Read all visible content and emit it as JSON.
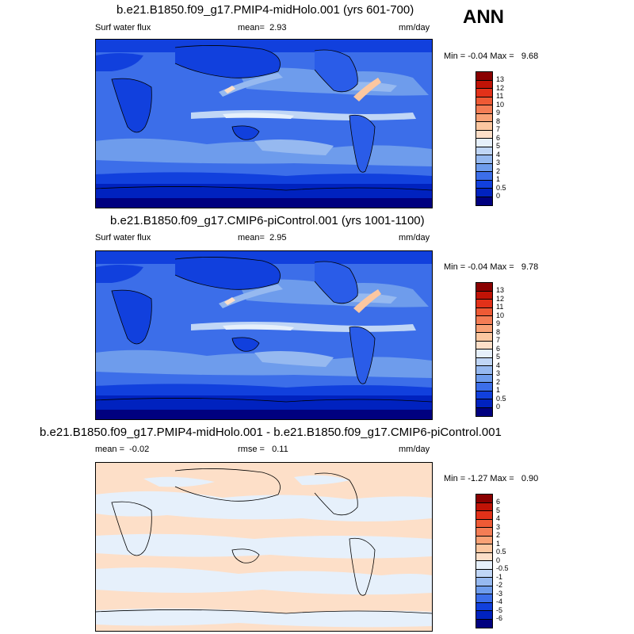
{
  "season": "ANN",
  "palette_full": [
    "#00007f",
    "#0022bf",
    "#1140dd",
    "#2a5ce8",
    "#3c6ee9",
    "#5486ea",
    "#6e9cec",
    "#96b9f0",
    "#c0d6f6",
    "#e6f0fb",
    "#fddfc8",
    "#fcc7a0",
    "#f9a276",
    "#f47d55",
    "#ee5a35",
    "#e23119",
    "#c01306",
    "#8a0000"
  ],
  "panels": [
    {
      "title": "b.e21.B1850.f09_g17.PMIP4-midHolo.001 (yrs 601-700)",
      "left_label": "Surf water flux",
      "mid_label": "mean=",
      "mid_value": "2.93",
      "units": "mm/day",
      "min_label": "Min =",
      "min_value": "-0.04",
      "max_label": "Max =",
      "max_value": "9.68",
      "levels": [
        "0",
        "0.5",
        "1",
        "2",
        "3",
        "4",
        "5",
        "6",
        "7",
        "8",
        "9",
        "10",
        "11",
        "12",
        "13"
      ]
    },
    {
      "title": "b.e21.B1850.f09_g17.CMIP6-piControl.001 (yrs 1001-1100)",
      "left_label": "Surf water flux",
      "mid_label": "mean=",
      "mid_value": "2.95",
      "units": "mm/day",
      "min_label": "Min =",
      "min_value": "-0.04",
      "max_label": "Max =",
      "max_value": "9.78",
      "levels": [
        "0",
        "0.5",
        "1",
        "2",
        "3",
        "4",
        "5",
        "6",
        "7",
        "8",
        "9",
        "10",
        "11",
        "12",
        "13"
      ]
    },
    {
      "title": "b.e21.B1850.f09_g17.PMIP4-midHolo.001 - b.e21.B1850.f09_g17.CMIP6-piControl.001",
      "left_label": "mean =",
      "left_value": "-0.02",
      "mid_label": "rmse =",
      "mid_value": "0.11",
      "units": "mm/day",
      "min_label": "Min =",
      "min_value": "-1.27",
      "max_label": "Max =",
      "max_value": "0.90",
      "levels": [
        "-6",
        "-5",
        "-4",
        "-3",
        "-2",
        "-1",
        "-0.5",
        "0",
        "0.5",
        "1",
        "2",
        "3",
        "4",
        "5",
        "6"
      ]
    }
  ]
}
